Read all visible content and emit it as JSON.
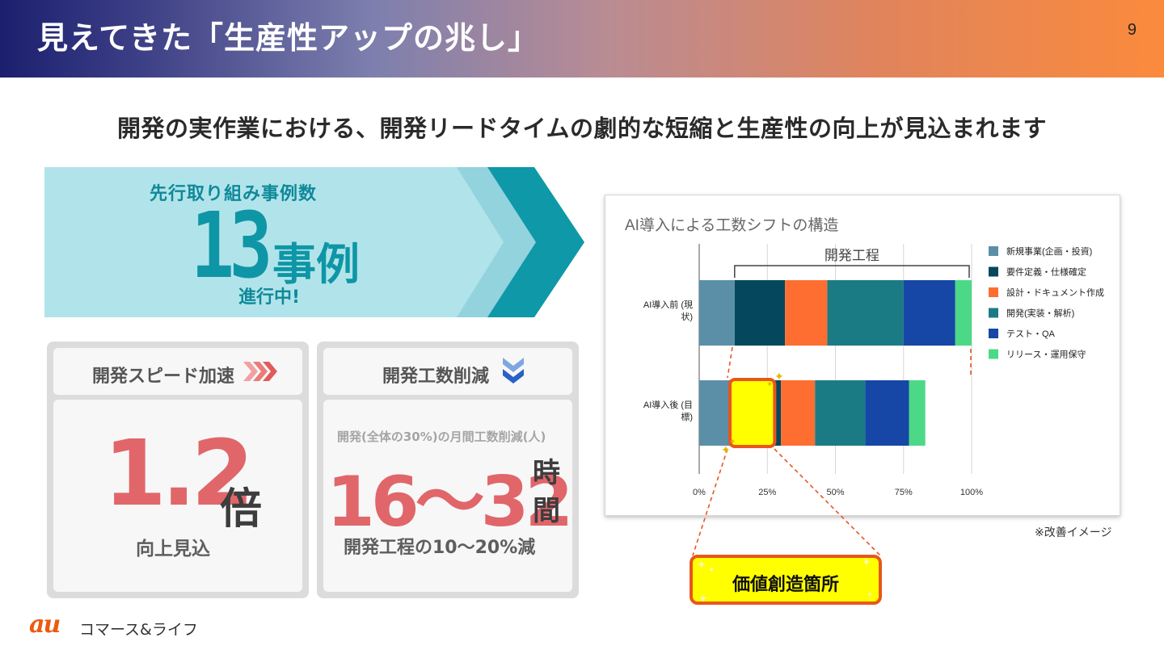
{
  "header": {
    "title": "見えてきた「生産性アップの兆し」",
    "page_number": "9"
  },
  "subtitle": "開発の実作業における、開発リードタイムの劇的な短縮と生産性の向上が見込まれます",
  "banner": {
    "caption": "先行取り組み事例数",
    "number": "13",
    "unit": "事例",
    "status": "進行中!"
  },
  "card_speed": {
    "label": "開発スピード加速",
    "value": "1.2",
    "unit": "倍",
    "note": "向上見込"
  },
  "card_effort": {
    "label": "開発工数削減",
    "caption": "開発(全体の30%)の月間工数削減(人)",
    "value": "16〜32",
    "unit_line1": "時",
    "unit_line2": "間",
    "note": "開発工程の10〜20%減"
  },
  "colors": {
    "accent_teal": "#0e96a6",
    "highlight_red": "#e0666a",
    "callout_orange": "#e8571c",
    "callout_fill": "#ffff00"
  },
  "chart_data": {
    "type": "bar",
    "orientation": "horizontal",
    "stacked": true,
    "title": "AI導入による工数シフトの構造",
    "bracket_label": "開発工程",
    "categories": [
      "AI導入前 (現状)",
      "AI導入後 (目標)"
    ],
    "series": [
      {
        "name": "新規事業(企画・投資)",
        "color": "#5b8fa8",
        "values": [
          13,
          11
        ]
      },
      {
        "name": "要件定義・仕様確定",
        "color": "#05485e",
        "values": [
          18.5,
          19
        ]
      },
      {
        "name": "設計・ドキュメント作成",
        "color": "#fe6e31",
        "values": [
          15.5,
          12.5
        ]
      },
      {
        "name": "開発(実装・解析)",
        "color": "#1b7b85",
        "values": [
          28,
          18.5
        ]
      },
      {
        "name": "テスト・QA",
        "color": "#1747a6",
        "values": [
          19,
          16
        ]
      },
      {
        "name": "リリース・運用保守",
        "color": "#4cd987",
        "values": [
          6,
          6
        ]
      }
    ],
    "highlight": {
      "category": "AI導入後 (目標)",
      "from": 11,
      "to": 28,
      "color": "#ffff00"
    },
    "xlim": [
      0,
      100
    ],
    "xticks": [
      "0%",
      "25%",
      "50%",
      "75%",
      "100%"
    ],
    "legend_position": "right"
  },
  "note": "※改善イメージ",
  "callout": {
    "label": "価値創造箇所"
  },
  "logo": {
    "mark": "au",
    "text": "コマース&ライフ"
  }
}
